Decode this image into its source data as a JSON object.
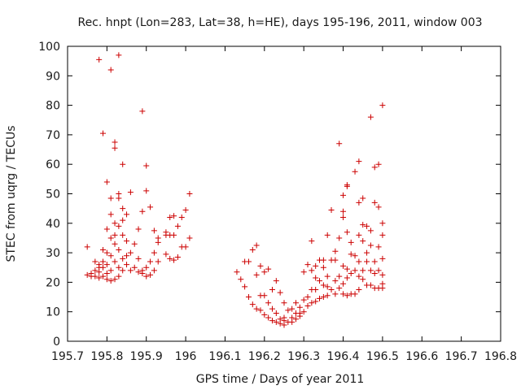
{
  "chart_data": {
    "type": "scatter",
    "title": "Rec. hnpt (Lon=283, Lat=38, h=HE), days 195-196, 2011, window 003",
    "xlabel": "GPS time / Days of year 2011",
    "ylabel": "STEC from uqrg / TECUs",
    "xlim": [
      195.7,
      196.8
    ],
    "ylim": [
      0,
      100
    ],
    "xticks": [
      195.7,
      195.8,
      195.9,
      196.0,
      196.1,
      196.2,
      196.3,
      196.4,
      196.5,
      196.6,
      196.7,
      196.8
    ],
    "xtick_labels": [
      "195.7",
      "195.8",
      "195.9",
      "196",
      "196.1",
      "196.2",
      "196.3",
      "196.4",
      "196.5",
      "196.6",
      "196.7",
      "196.8"
    ],
    "yticks": [
      0,
      10,
      20,
      30,
      40,
      50,
      60,
      70,
      80,
      90,
      100
    ],
    "ytick_labels": [
      "0",
      "10",
      "20",
      "30",
      "40",
      "50",
      "60",
      "70",
      "80",
      "90",
      "100"
    ],
    "marker": "+",
    "color": "#cc0000",
    "series": [
      {
        "name": "STEC",
        "points": [
          [
            195.75,
            32
          ],
          [
            195.75,
            22.5
          ],
          [
            195.76,
            22
          ],
          [
            195.76,
            23
          ],
          [
            195.77,
            27
          ],
          [
            195.77,
            24
          ],
          [
            195.77,
            22
          ],
          [
            195.78,
            95.5
          ],
          [
            195.78,
            26
          ],
          [
            195.78,
            25
          ],
          [
            195.78,
            23.5
          ],
          [
            195.78,
            21.5
          ],
          [
            195.79,
            70.5
          ],
          [
            195.79,
            31
          ],
          [
            195.79,
            27
          ],
          [
            195.79,
            25
          ],
          [
            195.79,
            22
          ],
          [
            195.8,
            54
          ],
          [
            195.8,
            38
          ],
          [
            195.8,
            30
          ],
          [
            195.8,
            26
          ],
          [
            195.8,
            23
          ],
          [
            195.8,
            21
          ],
          [
            195.81,
            92
          ],
          [
            195.81,
            48.5
          ],
          [
            195.81,
            43
          ],
          [
            195.81,
            35
          ],
          [
            195.81,
            29
          ],
          [
            195.81,
            24
          ],
          [
            195.81,
            20.5
          ],
          [
            195.82,
            67.5
          ],
          [
            195.82,
            65.5
          ],
          [
            195.82,
            40
          ],
          [
            195.82,
            36
          ],
          [
            195.82,
            33
          ],
          [
            195.82,
            27
          ],
          [
            195.82,
            21
          ],
          [
            195.83,
            97
          ],
          [
            195.83,
            50
          ],
          [
            195.83,
            48.5
          ],
          [
            195.83,
            39
          ],
          [
            195.83,
            31
          ],
          [
            195.83,
            25
          ],
          [
            195.83,
            22
          ],
          [
            195.84,
            60
          ],
          [
            195.84,
            45
          ],
          [
            195.84,
            41
          ],
          [
            195.84,
            36
          ],
          [
            195.84,
            28
          ],
          [
            195.84,
            24
          ],
          [
            195.85,
            43
          ],
          [
            195.85,
            34
          ],
          [
            195.85,
            29
          ],
          [
            195.85,
            26
          ],
          [
            195.86,
            50.5
          ],
          [
            195.86,
            30
          ],
          [
            195.86,
            24
          ],
          [
            195.87,
            33
          ],
          [
            195.87,
            25
          ],
          [
            195.88,
            38
          ],
          [
            195.88,
            28
          ],
          [
            195.88,
            23.5
          ],
          [
            195.89,
            78
          ],
          [
            195.89,
            44
          ],
          [
            195.89,
            24
          ],
          [
            195.89,
            23
          ],
          [
            195.9,
            59.5
          ],
          [
            195.9,
            51
          ],
          [
            195.9,
            25
          ],
          [
            195.9,
            22
          ],
          [
            195.91,
            45.5
          ],
          [
            195.91,
            27
          ],
          [
            195.91,
            22.5
          ],
          [
            195.92,
            37.5
          ],
          [
            195.92,
            30
          ],
          [
            195.92,
            24
          ],
          [
            195.93,
            35
          ],
          [
            195.93,
            33.5
          ],
          [
            195.93,
            27
          ],
          [
            195.95,
            37
          ],
          [
            195.95,
            36
          ],
          [
            195.95,
            29.5
          ],
          [
            195.96,
            42
          ],
          [
            195.96,
            36
          ],
          [
            195.96,
            28
          ],
          [
            195.97,
            42.5
          ],
          [
            195.97,
            36
          ],
          [
            195.97,
            27.5
          ],
          [
            195.98,
            39
          ],
          [
            195.98,
            28.5
          ],
          [
            195.99,
            42
          ],
          [
            195.99,
            32
          ],
          [
            196.0,
            44.5
          ],
          [
            196.0,
            32
          ],
          [
            196.01,
            50
          ],
          [
            196.01,
            35
          ],
          [
            196.13,
            23.5
          ],
          [
            196.14,
            21
          ],
          [
            196.15,
            27
          ],
          [
            196.15,
            18.5
          ],
          [
            196.16,
            27
          ],
          [
            196.16,
            15
          ],
          [
            196.17,
            31
          ],
          [
            196.17,
            12.5
          ],
          [
            196.18,
            32.5
          ],
          [
            196.18,
            22.5
          ],
          [
            196.18,
            11
          ],
          [
            196.19,
            25.5
          ],
          [
            196.19,
            15.5
          ],
          [
            196.19,
            10.5
          ],
          [
            196.2,
            23.5
          ],
          [
            196.2,
            15.5
          ],
          [
            196.2,
            9
          ],
          [
            196.21,
            24.5
          ],
          [
            196.21,
            13
          ],
          [
            196.21,
            8
          ],
          [
            196.22,
            17.5
          ],
          [
            196.22,
            11
          ],
          [
            196.22,
            7
          ],
          [
            196.23,
            20.5
          ],
          [
            196.23,
            9.5
          ],
          [
            196.23,
            6.5
          ],
          [
            196.24,
            16.5
          ],
          [
            196.24,
            7.5
          ],
          [
            196.24,
            6
          ],
          [
            196.25,
            13
          ],
          [
            196.25,
            8
          ],
          [
            196.25,
            7
          ],
          [
            196.25,
            5.5
          ],
          [
            196.26,
            10.5
          ],
          [
            196.26,
            6.5
          ],
          [
            196.27,
            11
          ],
          [
            196.27,
            8
          ],
          [
            196.27,
            6.5
          ],
          [
            196.28,
            13
          ],
          [
            196.28,
            9.5
          ],
          [
            196.28,
            7.5
          ],
          [
            196.29,
            11.5
          ],
          [
            196.29,
            9.5
          ],
          [
            196.29,
            8.5
          ],
          [
            196.3,
            23.5
          ],
          [
            196.3,
            14
          ],
          [
            196.3,
            10
          ],
          [
            196.31,
            26
          ],
          [
            196.31,
            15
          ],
          [
            196.31,
            12
          ],
          [
            196.32,
            34
          ],
          [
            196.32,
            24
          ],
          [
            196.32,
            17.5
          ],
          [
            196.32,
            13
          ],
          [
            196.33,
            25.5
          ],
          [
            196.33,
            21.5
          ],
          [
            196.33,
            17.5
          ],
          [
            196.33,
            13.5
          ],
          [
            196.34,
            27.5
          ],
          [
            196.34,
            20.5
          ],
          [
            196.34,
            14.5
          ],
          [
            196.35,
            27.5
          ],
          [
            196.35,
            25
          ],
          [
            196.35,
            19
          ],
          [
            196.35,
            15
          ],
          [
            196.36,
            36
          ],
          [
            196.36,
            22
          ],
          [
            196.36,
            18.5
          ],
          [
            196.36,
            15.5
          ],
          [
            196.37,
            44.5
          ],
          [
            196.37,
            27.5
          ],
          [
            196.37,
            17.5
          ],
          [
            196.38,
            30.5
          ],
          [
            196.38,
            27.5
          ],
          [
            196.38,
            20.5
          ],
          [
            196.38,
            16
          ],
          [
            196.39,
            67
          ],
          [
            196.39,
            35
          ],
          [
            196.39,
            22
          ],
          [
            196.39,
            18
          ],
          [
            196.4,
            49.5
          ],
          [
            196.4,
            44
          ],
          [
            196.4,
            42
          ],
          [
            196.4,
            25.5
          ],
          [
            196.4,
            19.5
          ],
          [
            196.4,
            16
          ],
          [
            196.41,
            53
          ],
          [
            196.41,
            52.5
          ],
          [
            196.41,
            37
          ],
          [
            196.41,
            24.5
          ],
          [
            196.41,
            21.5
          ],
          [
            196.41,
            15.5
          ],
          [
            196.42,
            33.5
          ],
          [
            196.42,
            29.5
          ],
          [
            196.42,
            23
          ],
          [
            196.42,
            16
          ],
          [
            196.43,
            57.5
          ],
          [
            196.43,
            29
          ],
          [
            196.43,
            24
          ],
          [
            196.43,
            16
          ],
          [
            196.44,
            61
          ],
          [
            196.44,
            47
          ],
          [
            196.44,
            36
          ],
          [
            196.44,
            27
          ],
          [
            196.44,
            22
          ],
          [
            196.44,
            17.5
          ],
          [
            196.45,
            48.5
          ],
          [
            196.45,
            39.5
          ],
          [
            196.45,
            34
          ],
          [
            196.45,
            24
          ],
          [
            196.45,
            21
          ],
          [
            196.46,
            39
          ],
          [
            196.46,
            30
          ],
          [
            196.46,
            27
          ],
          [
            196.46,
            19
          ],
          [
            196.47,
            76
          ],
          [
            196.47,
            37.5
          ],
          [
            196.47,
            32.5
          ],
          [
            196.47,
            24
          ],
          [
            196.47,
            19
          ],
          [
            196.48,
            59
          ],
          [
            196.48,
            47
          ],
          [
            196.48,
            27
          ],
          [
            196.48,
            23
          ],
          [
            196.48,
            18
          ],
          [
            196.49,
            60
          ],
          [
            196.49,
            45.5
          ],
          [
            196.49,
            32
          ],
          [
            196.49,
            24
          ],
          [
            196.49,
            18
          ],
          [
            196.5,
            80
          ],
          [
            196.5,
            40
          ],
          [
            196.5,
            36
          ],
          [
            196.5,
            28
          ],
          [
            196.5,
            22.5
          ],
          [
            196.5,
            19.5
          ],
          [
            196.5,
            18
          ]
        ]
      }
    ]
  }
}
